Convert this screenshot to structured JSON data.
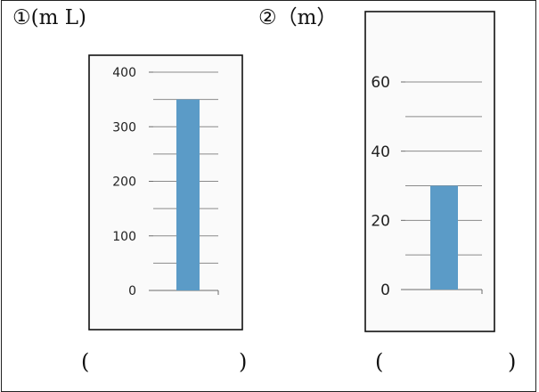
{
  "questions": [
    {
      "number_label": "①(m L)",
      "answer_open": "(",
      "answer_close": ")"
    },
    {
      "number_label": "②（m）",
      "answer_open": "(",
      "answer_close": ")"
    }
  ],
  "chart_data": [
    {
      "type": "bar",
      "title": "",
      "xlabel": "",
      "ylabel": "",
      "categories": [
        ""
      ],
      "values": [
        350
      ],
      "ylim": [
        0,
        400
      ],
      "yticks": [
        0,
        100,
        200,
        300,
        400
      ],
      "minor_step": 50,
      "grid": true,
      "bar_color": "#5b9bc7"
    },
    {
      "type": "bar",
      "title": "",
      "xlabel": "",
      "ylabel": "",
      "categories": [
        ""
      ],
      "values": [
        30
      ],
      "ylim": [
        0,
        60
      ],
      "yticks": [
        0,
        20,
        40,
        60
      ],
      "minor_step": 10,
      "grid": true,
      "bar_color": "#5b9bc7"
    }
  ]
}
